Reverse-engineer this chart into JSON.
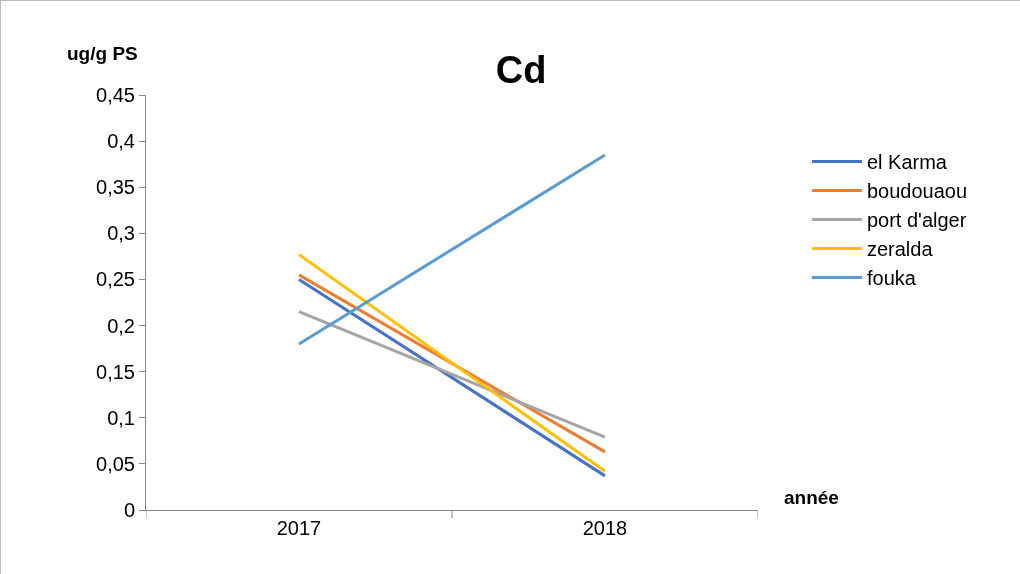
{
  "chart_data": {
    "type": "line",
    "title": "Cd",
    "ylabel": "ug/g PS",
    "xlabel": "année",
    "categories": [
      "2017",
      "2018"
    ],
    "series": [
      {
        "name": "el Karma",
        "color": "#4472c4",
        "values": [
          0.25,
          0.037
        ]
      },
      {
        "name": "boudouaou",
        "color": "#ed7d31",
        "values": [
          0.255,
          0.063
        ]
      },
      {
        "name": "port d'alger",
        "color": "#a5a5a5",
        "values": [
          0.215,
          0.079
        ]
      },
      {
        "name": "zeralda",
        "color": "#ffc000",
        "values": [
          0.277,
          0.042
        ]
      },
      {
        "name": "fouka",
        "color": "#5b9bd5",
        "values": [
          0.18,
          0.385
        ]
      }
    ],
    "ylim": [
      0,
      0.45
    ],
    "yticks": [
      0,
      {
        "value": 0.05,
        "label": "0,05"
      },
      {
        "value": 0.1,
        "label": "0,1"
      },
      {
        "value": 0.15,
        "label": "0,15"
      },
      {
        "value": 0.2,
        "label": "0,2"
      },
      {
        "value": 0.25,
        "label": "0,25"
      },
      {
        "value": 0.3,
        "label": "0,3"
      },
      {
        "value": 0.35,
        "label": "0,35"
      },
      {
        "value": 0.4,
        "label": "0,4"
      },
      {
        "value": 0.45,
        "label": "0,45"
      }
    ],
    "grid": false,
    "legend": "right",
    "marker": "none",
    "line_style": "solid"
  }
}
